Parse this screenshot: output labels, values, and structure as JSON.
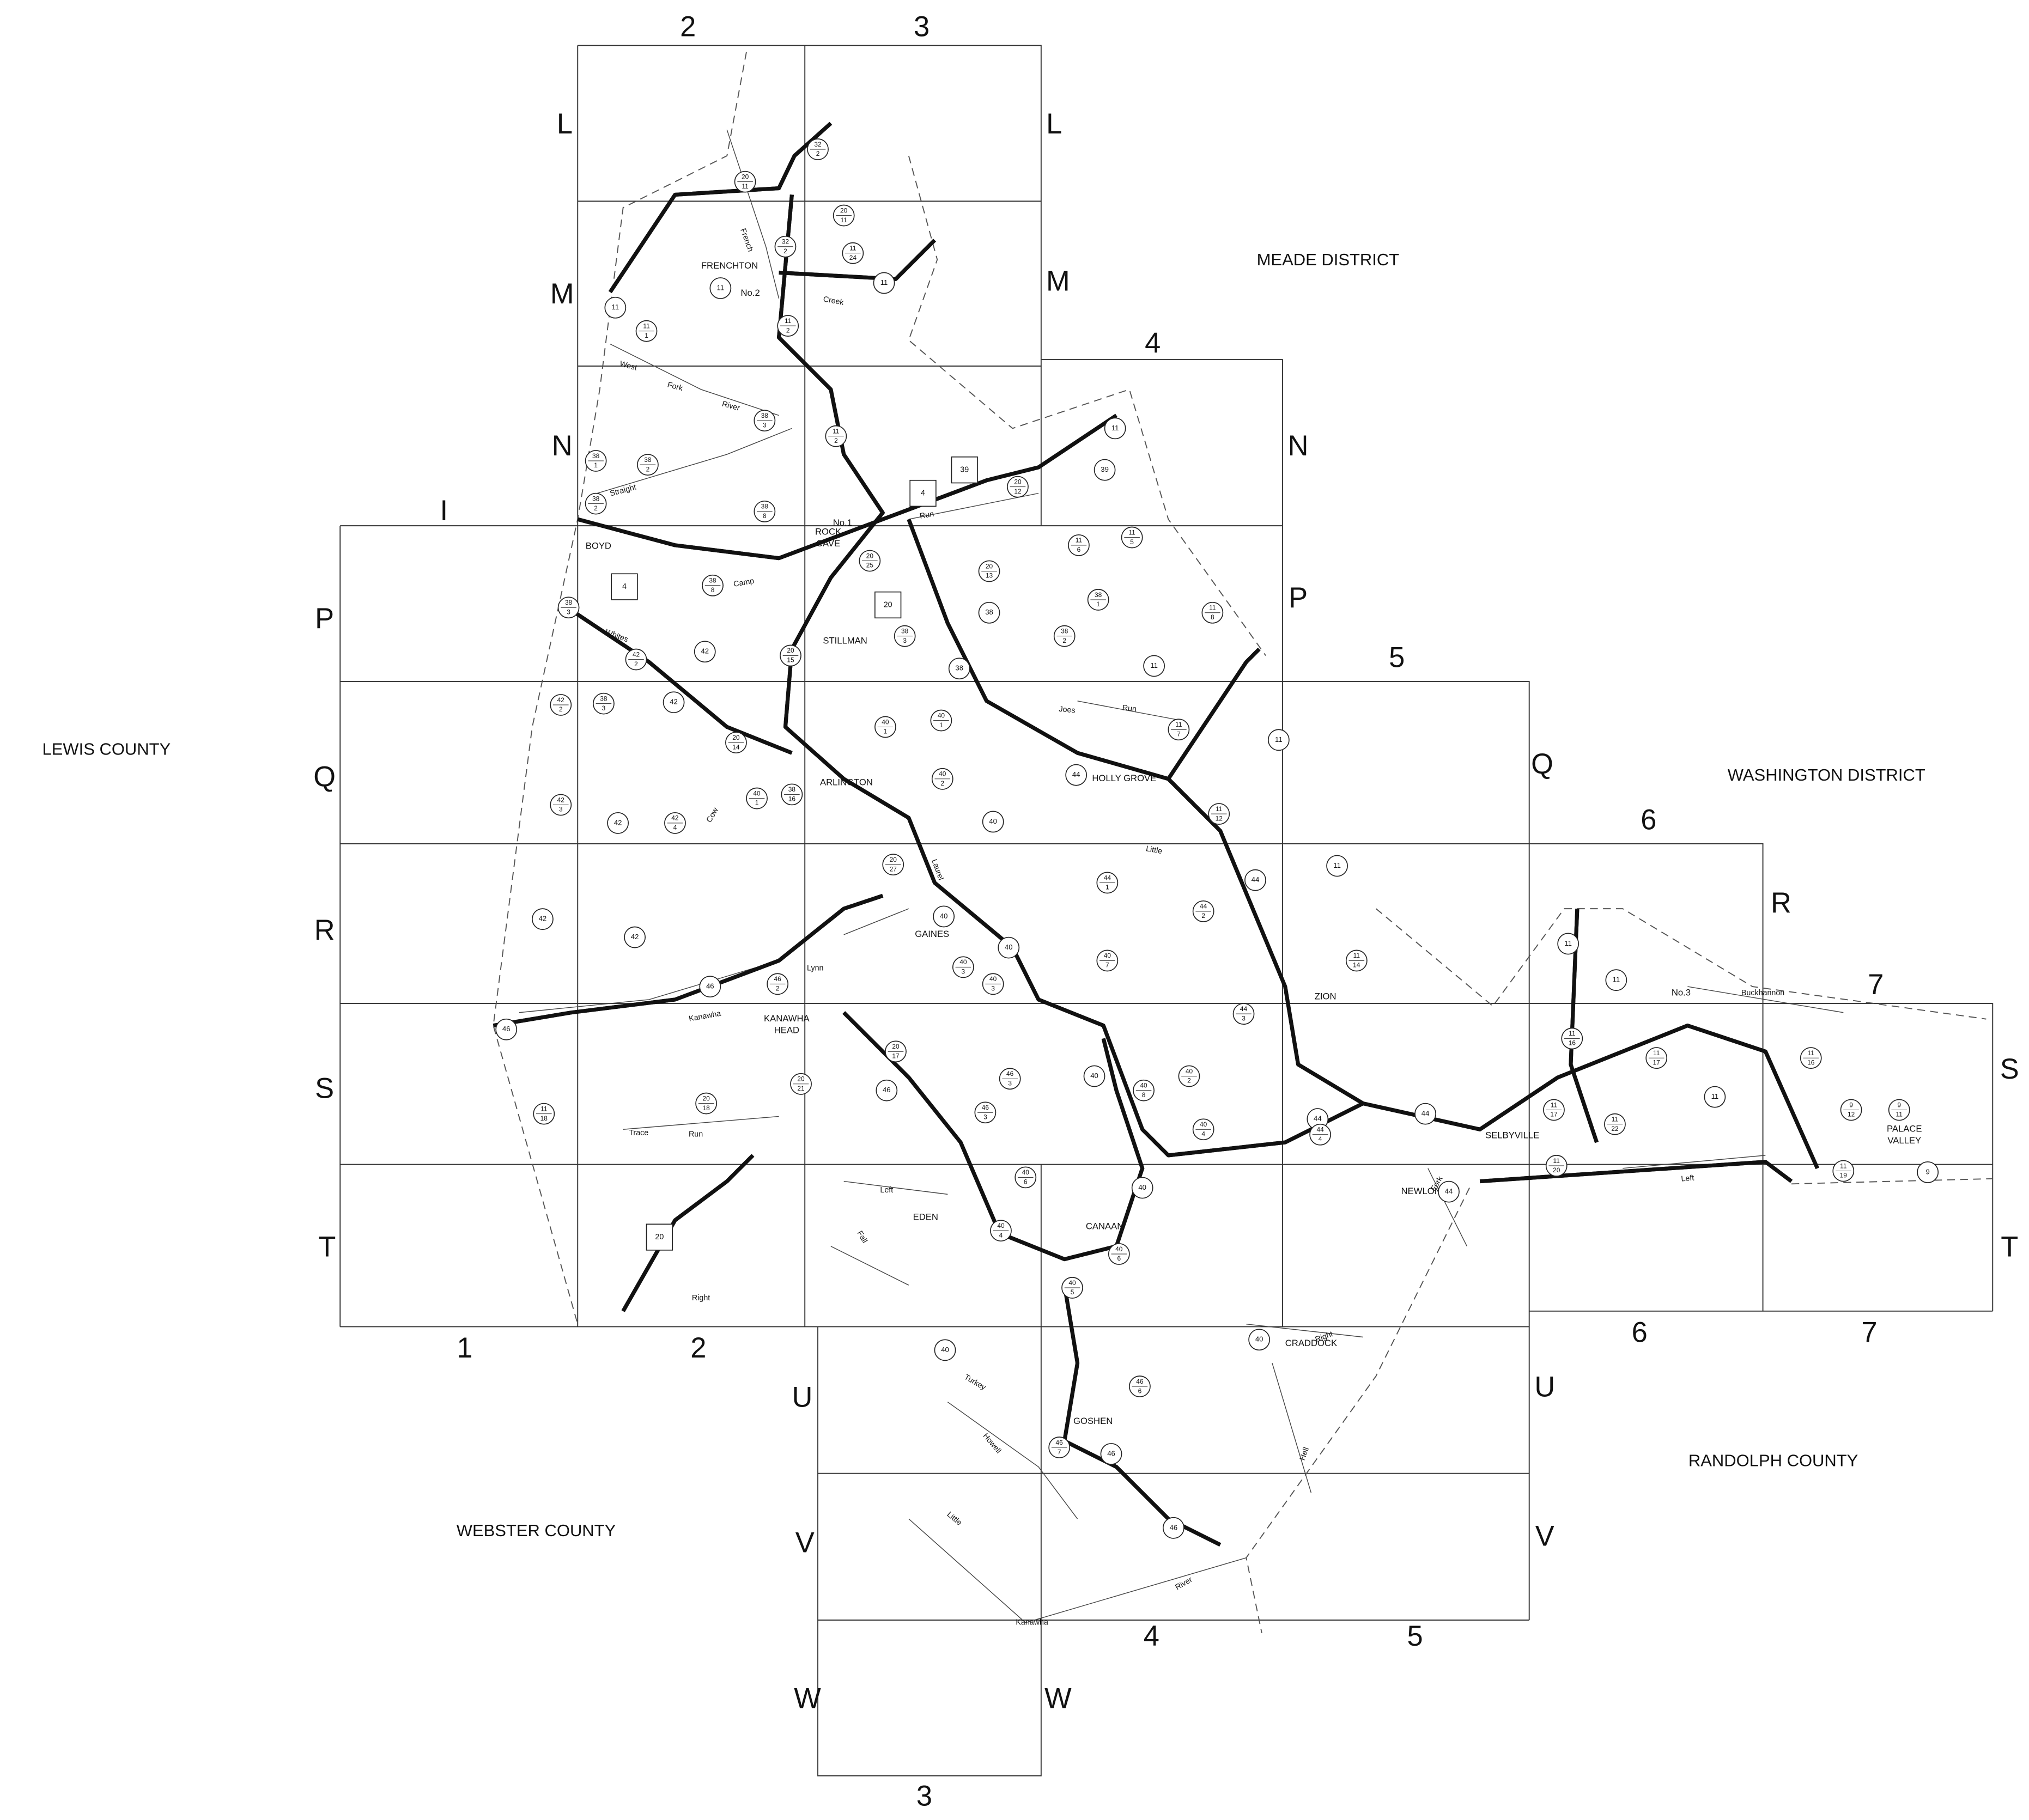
{
  "grid_labels": [
    "2",
    "3",
    "L",
    "L",
    "M",
    "M",
    "4",
    "N",
    "N",
    "I",
    "P",
    "P",
    "5",
    "Q",
    "Q",
    "6",
    "R",
    "R",
    "7",
    "S",
    "S",
    "T",
    "T",
    "1",
    "2",
    "6",
    "7",
    "U",
    "U",
    "V",
    "V",
    "4",
    "5",
    "W",
    "W",
    "3"
  ],
  "regions": [
    "MEADE DISTRICT",
    "LEWIS COUNTY",
    "WASHINGTON DISTRICT",
    "RANDOLPH COUNTY",
    "WEBSTER COUNTY"
  ],
  "towns": [
    [
      "FRENCHTON"
    ],
    [
      "No.2"
    ],
    [
      "No.1"
    ],
    [
      "ROCK",
      "CAVE"
    ],
    [
      "BOYD"
    ],
    [
      "STILLMAN"
    ],
    [
      "ARLINGTON"
    ],
    [
      "HOLLY GROVE"
    ],
    [
      "GAINES"
    ],
    [
      "KANAWHA",
      "HEAD"
    ],
    [
      "ZION"
    ],
    [
      "No.3"
    ],
    [
      "SELBYVILLE"
    ],
    [
      "NEWLONTON"
    ],
    [
      "PALACE",
      "VALLEY"
    ],
    [
      "EDEN"
    ],
    [
      "CANAAN"
    ],
    [
      "CRADDOCK"
    ],
    [
      "GOSHEN"
    ]
  ],
  "streams": [
    "French",
    "Creek",
    "West",
    "Fork",
    "River",
    "Straight",
    "Camp",
    "Run",
    "Whites",
    "Joes",
    "Run",
    "Little",
    "Laurel",
    "Lynn",
    "Kanawha",
    "Cow",
    "Trace",
    "Run",
    "Left",
    "Fall",
    "Right",
    "Fork",
    "Left",
    "Buckhannon",
    "Kanawha",
    "River",
    "Howell",
    "Turkey",
    "Little",
    "Hell",
    "Right"
  ],
  "route_markers": [
    {
      "number": "32",
      "sub": "2"
    },
    {
      "number": "20",
      "sub": "11"
    },
    {
      "number": "20",
      "sub": "11"
    },
    {
      "number": "32",
      "sub": "2"
    },
    {
      "number": "11",
      "sub": "24"
    },
    {
      "number": "11"
    },
    {
      "number": "11"
    },
    {
      "number": "11"
    },
    {
      "number": "11",
      "sub": "1"
    },
    {
      "number": "11",
      "sub": "2"
    },
    {
      "number": "11",
      "sub": "2"
    },
    {
      "number": "38",
      "sub": "3"
    },
    {
      "number": "11"
    },
    {
      "number": "39"
    },
    {
      "number": "20",
      "sub": "12"
    },
    {
      "number": "38",
      "sub": "1"
    },
    {
      "number": "38",
      "sub": "2"
    },
    {
      "number": "38",
      "sub": "2"
    },
    {
      "number": "38",
      "sub": "8"
    },
    {
      "number": "20",
      "sub": "25"
    },
    {
      "number": "20",
      "sub": "13"
    },
    {
      "number": "11",
      "sub": "5"
    },
    {
      "number": "11",
      "sub": "6"
    },
    {
      "number": "38",
      "sub": "8"
    },
    {
      "number": "38",
      "sub": "3"
    },
    {
      "number": "38"
    },
    {
      "number": "38",
      "sub": "1"
    },
    {
      "number": "11",
      "sub": "8"
    },
    {
      "number": "38",
      "sub": "3"
    },
    {
      "number": "38",
      "sub": "2"
    },
    {
      "number": "42"
    },
    {
      "number": "42",
      "sub": "2"
    },
    {
      "number": "20",
      "sub": "15"
    },
    {
      "number": "11"
    },
    {
      "number": "38"
    },
    {
      "number": "38",
      "sub": "3"
    },
    {
      "number": "42",
      "sub": "2"
    },
    {
      "number": "42"
    },
    {
      "number": "20",
      "sub": "14"
    },
    {
      "number": "40",
      "sub": "1"
    },
    {
      "number": "40",
      "sub": "1"
    },
    {
      "number": "11",
      "sub": "7"
    },
    {
      "number": "11"
    },
    {
      "number": "38",
      "sub": "16"
    },
    {
      "number": "40",
      "sub": "1"
    },
    {
      "number": "40",
      "sub": "2"
    },
    {
      "number": "44"
    },
    {
      "number": "11",
      "sub": "12"
    },
    {
      "number": "42",
      "sub": "3"
    },
    {
      "number": "42"
    },
    {
      "number": "42",
      "sub": "4"
    },
    {
      "number": "40"
    },
    {
      "number": "20",
      "sub": "27"
    },
    {
      "number": "11"
    },
    {
      "number": "44",
      "sub": "1"
    },
    {
      "number": "44",
      "sub": "2"
    },
    {
      "number": "44"
    },
    {
      "number": "40"
    },
    {
      "number": "11",
      "sub": "14"
    },
    {
      "number": "42"
    },
    {
      "number": "42"
    },
    {
      "number": "40"
    },
    {
      "number": "46",
      "sub": "2"
    },
    {
      "number": "40",
      "sub": "3"
    },
    {
      "number": "40",
      "sub": "3"
    },
    {
      "number": "46"
    },
    {
      "number": "40",
      "sub": "7"
    },
    {
      "number": "44",
      "sub": "3"
    },
    {
      "number": "46"
    },
    {
      "number": "20",
      "sub": "17"
    },
    {
      "number": "20",
      "sub": "21"
    },
    {
      "number": "46",
      "sub": "3"
    },
    {
      "number": "46"
    },
    {
      "number": "40"
    },
    {
      "number": "20",
      "sub": "18"
    },
    {
      "number": "11",
      "sub": "18"
    },
    {
      "number": "46",
      "sub": "3"
    },
    {
      "number": "44"
    },
    {
      "number": "44"
    },
    {
      "number": "40",
      "sub": "8"
    },
    {
      "number": "40",
      "sub": "2"
    },
    {
      "number": "40",
      "sub": "4"
    },
    {
      "number": "44",
      "sub": "4"
    },
    {
      "number": "40",
      "sub": "6"
    },
    {
      "number": "40",
      "sub": "4"
    },
    {
      "number": "40"
    },
    {
      "number": "40",
      "sub": "6"
    },
    {
      "number": "40",
      "sub": "5"
    },
    {
      "number": "40"
    },
    {
      "number": "40"
    },
    {
      "number": "44"
    },
    {
      "number": "11",
      "sub": "20"
    },
    {
      "number": "11",
      "sub": "22"
    },
    {
      "number": "11",
      "sub": "17"
    },
    {
      "number": "11",
      "sub": "17"
    },
    {
      "number": "11",
      "sub": "16"
    },
    {
      "number": "11"
    },
    {
      "number": "11"
    },
    {
      "number": "11"
    },
    {
      "number": "11",
      "sub": "16"
    },
    {
      "number": "9",
      "sub": "12"
    },
    {
      "number": "9",
      "sub": "11"
    },
    {
      "number": "11",
      "sub": "19"
    },
    {
      "number": "9"
    },
    {
      "number": "46",
      "sub": "6"
    },
    {
      "number": "46",
      "sub": "7"
    },
    {
      "number": "46"
    },
    {
      "number": "46"
    }
  ],
  "route_squares": [
    "39",
    "4",
    "4",
    "20",
    "20"
  ]
}
